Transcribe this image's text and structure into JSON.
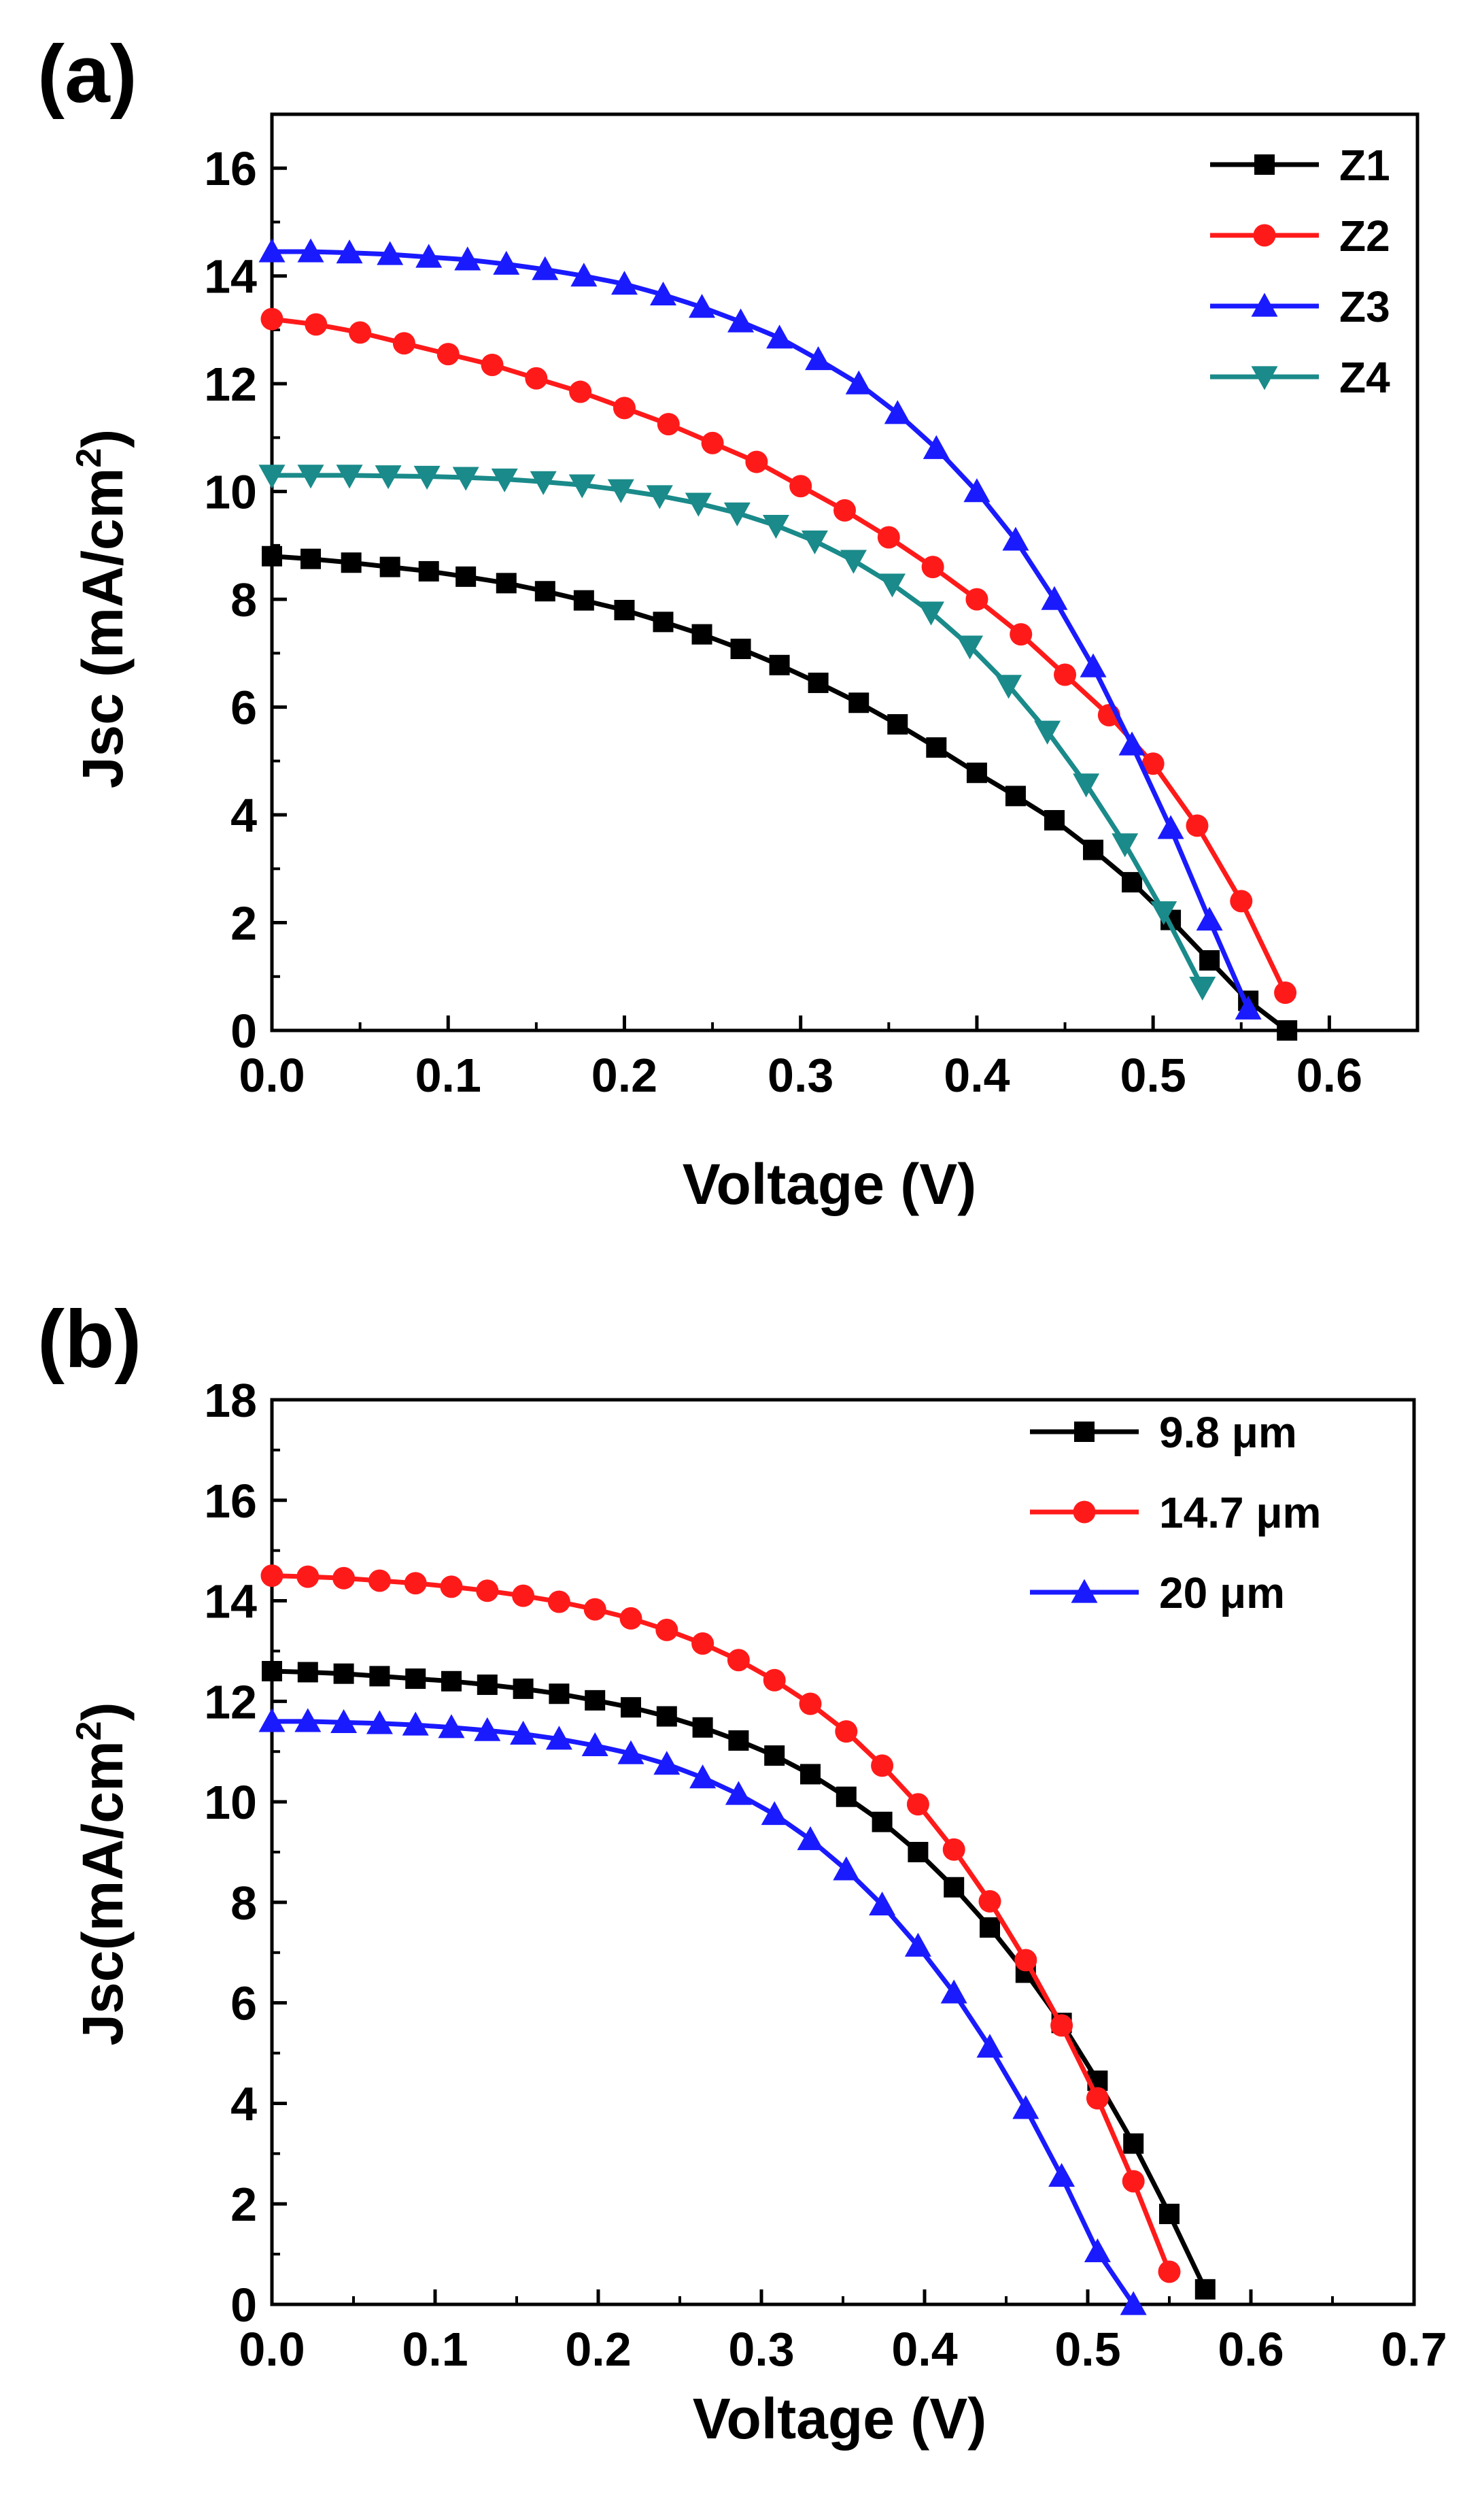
{
  "chart_data": [
    {
      "type": "line",
      "panel": "(a)",
      "xlabel": "Voltage (V)",
      "ylabel": "Jsc (mA/cm",
      "ylabel_sup": "2",
      "ylabel_close": ")",
      "xlim": [
        0.0,
        0.65
      ],
      "ylim": [
        0,
        17
      ],
      "xticks": [
        "0.0",
        "0.1",
        "0.2",
        "0.3",
        "0.4",
        "0.5",
        "0.6"
      ],
      "yticks": [
        "0",
        "2",
        "4",
        "6",
        "8",
        "10",
        "12",
        "14",
        "16"
      ],
      "legend_position": "top-right",
      "series": [
        {
          "name": "Z1",
          "color": "#000000",
          "marker": "square",
          "x": [
            0.0,
            0.022,
            0.045,
            0.067,
            0.089,
            0.11,
            0.133,
            0.155,
            0.177,
            0.2,
            0.222,
            0.244,
            0.266,
            0.288,
            0.31,
            0.333,
            0.355,
            0.377,
            0.4,
            0.422,
            0.444,
            0.466,
            0.488,
            0.51,
            0.532,
            0.554,
            0.576
          ],
          "y": [
            8.8,
            8.75,
            8.68,
            8.6,
            8.52,
            8.42,
            8.3,
            8.15,
            7.98,
            7.8,
            7.58,
            7.35,
            7.08,
            6.78,
            6.45,
            6.08,
            5.68,
            5.25,
            4.78,
            4.35,
            3.9,
            3.35,
            2.75,
            2.05,
            1.3,
            0.55,
            0.0
          ]
        },
        {
          "name": "Z2",
          "color": "#ff1a1a",
          "marker": "circle",
          "x": [
            0.0,
            0.025,
            0.05,
            0.075,
            0.1,
            0.125,
            0.15,
            0.175,
            0.2,
            0.225,
            0.25,
            0.275,
            0.3,
            0.325,
            0.35,
            0.375,
            0.4,
            0.425,
            0.45,
            0.475,
            0.5,
            0.525,
            0.55,
            0.575
          ],
          "y": [
            13.2,
            13.1,
            12.95,
            12.75,
            12.55,
            12.35,
            12.1,
            11.85,
            11.55,
            11.25,
            10.9,
            10.55,
            10.1,
            9.65,
            9.15,
            8.6,
            8.0,
            7.35,
            6.6,
            5.85,
            4.95,
            3.8,
            2.4,
            0.7
          ]
        },
        {
          "name": "Z3",
          "color": "#1a1aff",
          "marker": "triangle-up",
          "x": [
            0.0,
            0.022,
            0.044,
            0.067,
            0.089,
            0.111,
            0.133,
            0.155,
            0.177,
            0.2,
            0.222,
            0.244,
            0.266,
            0.288,
            0.31,
            0.333,
            0.355,
            0.377,
            0.4,
            0.422,
            0.444,
            0.466,
            0.488,
            0.51,
            0.532,
            0.554
          ],
          "y": [
            14.45,
            14.45,
            14.43,
            14.4,
            14.35,
            14.3,
            14.22,
            14.12,
            14.0,
            13.85,
            13.65,
            13.42,
            13.15,
            12.85,
            12.45,
            12.0,
            11.45,
            10.8,
            10.0,
            9.1,
            8.0,
            6.75,
            5.3,
            3.75,
            2.05,
            0.4
          ]
        },
        {
          "name": "Z4",
          "color": "#1a8a8a",
          "marker": "triangle-down",
          "x": [
            0.0,
            0.022,
            0.044,
            0.066,
            0.088,
            0.11,
            0.132,
            0.154,
            0.176,
            0.198,
            0.22,
            0.242,
            0.264,
            0.286,
            0.308,
            0.33,
            0.352,
            0.374,
            0.396,
            0.418,
            0.44,
            0.462,
            0.484,
            0.506,
            0.528
          ],
          "y": [
            10.3,
            10.3,
            10.3,
            10.29,
            10.28,
            10.26,
            10.23,
            10.18,
            10.12,
            10.03,
            9.92,
            9.78,
            9.6,
            9.37,
            9.08,
            8.72,
            8.28,
            7.76,
            7.13,
            6.4,
            5.55,
            4.57,
            3.46,
            2.2,
            0.8
          ]
        }
      ]
    },
    {
      "type": "line",
      "panel": "(b)",
      "xlabel": "Voltage (V)",
      "ylabel": "Jsc(mA/cm",
      "ylabel_sup": "2",
      "ylabel_close": ")",
      "xlim": [
        0.0,
        0.7
      ],
      "ylim": [
        0,
        18
      ],
      "xticks": [
        "0.0",
        "0.1",
        "0.2",
        "0.3",
        "0.4",
        "0.5",
        "0.6",
        "0.7"
      ],
      "yticks": [
        "0",
        "2",
        "4",
        "6",
        "8",
        "10",
        "12",
        "14",
        "16",
        "18"
      ],
      "legend_position": "top-right",
      "series": [
        {
          "name": "9.8 μm",
          "color": "#000000",
          "marker": "square",
          "x": [
            0.0,
            0.022,
            0.044,
            0.066,
            0.088,
            0.11,
            0.132,
            0.154,
            0.176,
            0.198,
            0.22,
            0.242,
            0.264,
            0.286,
            0.308,
            0.33,
            0.352,
            0.374,
            0.396,
            0.418,
            0.44,
            0.462,
            0.484,
            0.506,
            0.528,
            0.55,
            0.572
          ],
          "y": [
            12.6,
            12.58,
            12.55,
            12.5,
            12.45,
            12.4,
            12.33,
            12.25,
            12.15,
            12.02,
            11.88,
            11.7,
            11.48,
            11.22,
            10.92,
            10.55,
            10.1,
            9.6,
            9.0,
            8.3,
            7.5,
            6.6,
            5.6,
            4.45,
            3.2,
            1.8,
            0.3
          ]
        },
        {
          "name": "14.7 μm",
          "color": "#ff1a1a",
          "marker": "circle",
          "x": [
            0.0,
            0.022,
            0.044,
            0.066,
            0.088,
            0.11,
            0.132,
            0.154,
            0.176,
            0.198,
            0.22,
            0.242,
            0.264,
            0.286,
            0.308,
            0.33,
            0.352,
            0.374,
            0.396,
            0.418,
            0.44,
            0.462,
            0.484,
            0.506,
            0.528,
            0.55
          ],
          "y": [
            14.5,
            14.48,
            14.45,
            14.4,
            14.35,
            14.28,
            14.2,
            14.1,
            13.98,
            13.83,
            13.65,
            13.42,
            13.15,
            12.82,
            12.42,
            11.95,
            11.4,
            10.72,
            9.95,
            9.05,
            8.02,
            6.85,
            5.55,
            4.1,
            2.45,
            0.65
          ]
        },
        {
          "name": "20 μm",
          "color": "#1a1aff",
          "marker": "triangle-up",
          "x": [
            0.0,
            0.022,
            0.044,
            0.066,
            0.088,
            0.11,
            0.132,
            0.154,
            0.176,
            0.198,
            0.22,
            0.242,
            0.264,
            0.286,
            0.308,
            0.33,
            0.352,
            0.374,
            0.396,
            0.418,
            0.44,
            0.462,
            0.484,
            0.506,
            0.528
          ],
          "y": [
            11.6,
            11.6,
            11.58,
            11.56,
            11.53,
            11.48,
            11.42,
            11.35,
            11.25,
            11.12,
            10.96,
            10.75,
            10.48,
            10.15,
            9.75,
            9.25,
            8.65,
            7.95,
            7.13,
            6.2,
            5.12,
            3.9,
            2.55,
            1.05,
            0.0
          ]
        }
      ]
    }
  ]
}
